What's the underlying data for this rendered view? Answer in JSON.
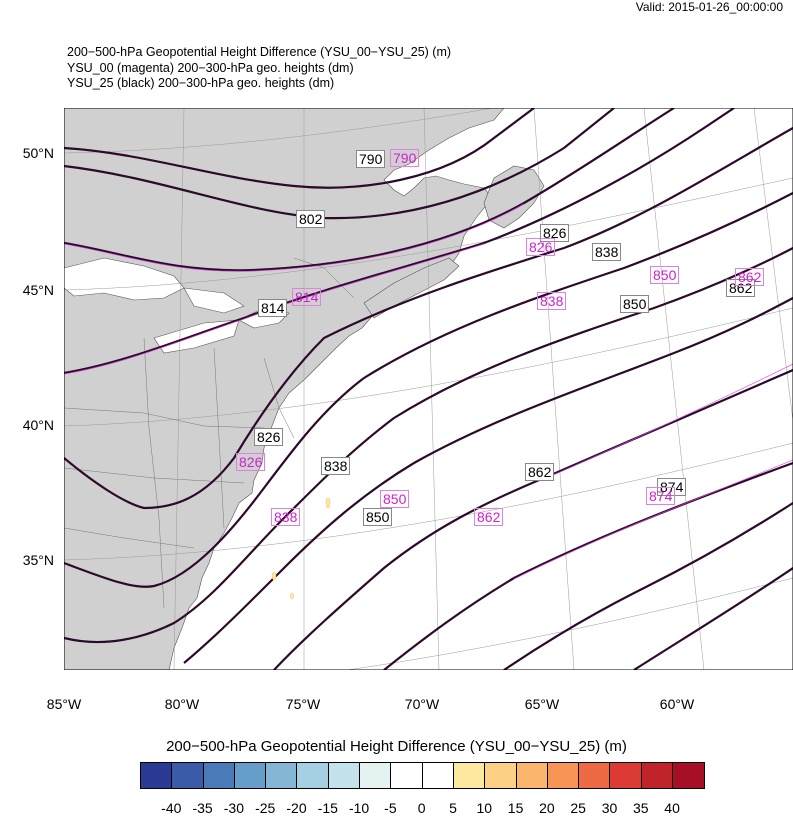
{
  "valid": "Valid: 2015-01-26_00:00:00",
  "titles": [
    "200−500-hPa Geopotential Height Difference (YSU_00−YSU_25)   (m)",
    "YSU_00 (magenta) 200−300-hPa geo. heights   (dm)",
    "YSU_25 (black) 200−300-hPa geo. heights   (dm)"
  ],
  "lat_labels": [
    "50°N",
    "45°N",
    "40°N",
    "35°N"
  ],
  "lon_labels": [
    "85°W",
    "80°W",
    "75°W",
    "70°W",
    "65°W",
    "60°W"
  ],
  "contour_labels_black": [
    "790",
    "802",
    "814",
    "826",
    "826",
    "838",
    "838",
    "850",
    "850",
    "862",
    "862",
    "874"
  ],
  "contour_labels_magenta": [
    "790",
    "802",
    "814",
    "826",
    "826",
    "838",
    "838",
    "850",
    "850",
    "862",
    "862",
    "874"
  ],
  "colorbar": {
    "title": "200−500-hPa Geopotential Height Difference (YSU_00−YSU_25)  (m)",
    "ticks": [
      "-40",
      "-35",
      "-30",
      "-25",
      "-20",
      "-15",
      "-10",
      "-5",
      "0",
      "5",
      "10",
      "15",
      "20",
      "25",
      "30",
      "35",
      "40"
    ],
    "colors": [
      "#2b3a94",
      "#3a5ca8",
      "#4a7ab8",
      "#669dc9",
      "#86b6d6",
      "#a5cfe3",
      "#c3e2ec",
      "#e4f3f2",
      "#ffffff",
      "#ffffff",
      "#fde8a0",
      "#fcd085",
      "#fbb56c",
      "#f79456",
      "#ee6a44",
      "#dc3b33",
      "#c0232a",
      "#a60f26"
    ]
  }
}
